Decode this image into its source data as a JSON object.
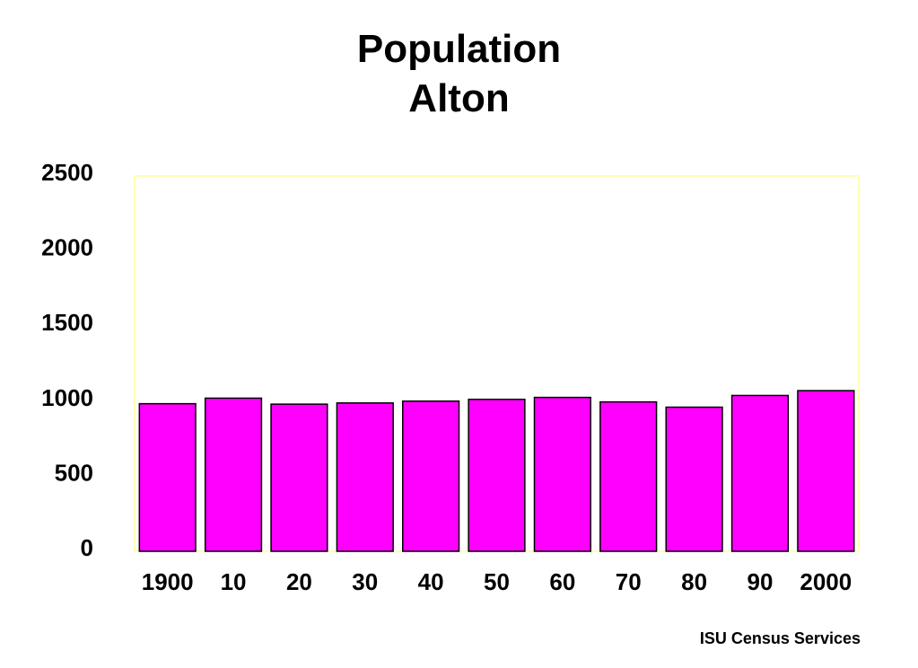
{
  "chart_data": {
    "type": "bar",
    "title": [
      "Population",
      "Alton"
    ],
    "categories": [
      "1900",
      "10",
      "20",
      "30",
      "40",
      "50",
      "60",
      "70",
      "80",
      "90",
      "2000"
    ],
    "values": [
      983,
      1020,
      980,
      988,
      1000,
      1012,
      1025,
      995,
      960,
      1038,
      1070
    ],
    "yticks": [
      "0",
      "500",
      "1000",
      "1500",
      "2000",
      "2500"
    ],
    "ylim": [
      0,
      2500
    ],
    "grid": false,
    "legend": "none",
    "colors": {
      "bar_fill": "#ff00ff",
      "bar_stroke": "#000000",
      "plot_border": "#ffff99"
    }
  },
  "footer": {
    "source": "ISU Census Services"
  }
}
